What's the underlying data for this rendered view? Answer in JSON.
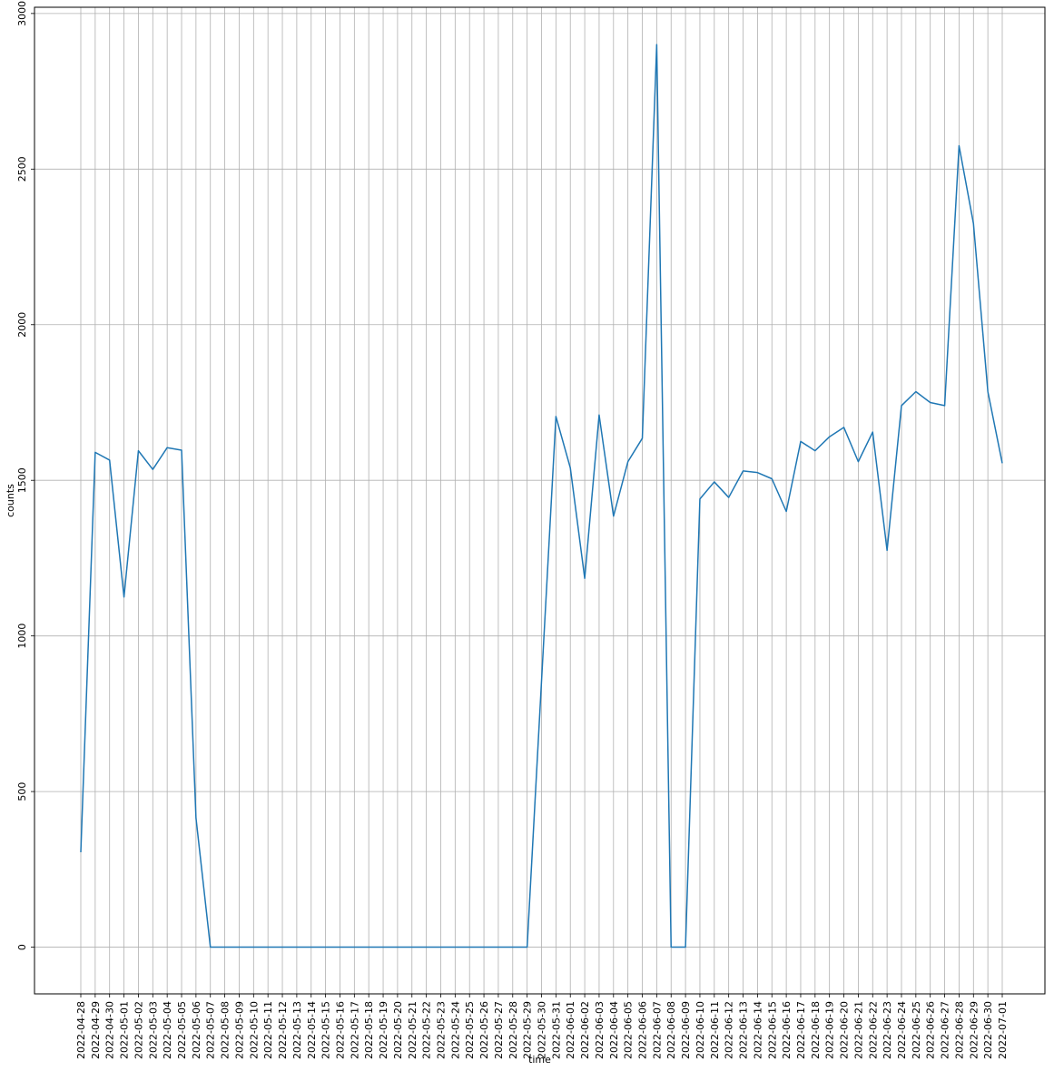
{
  "chart_data": {
    "type": "line",
    "xlabel": "time",
    "ylabel": "counts",
    "grid": true,
    "ylim": [
      -150,
      3020
    ],
    "yticks": [
      0,
      500,
      1000,
      1500,
      2000,
      2500,
      3000
    ],
    "series_color": "#1f77b4",
    "x": [
      "2022-04-28",
      "2022-04-29",
      "2022-04-30",
      "2022-05-01",
      "2022-05-02",
      "2022-05-03",
      "2022-05-04",
      "2022-05-05",
      "2022-05-06",
      "2022-05-07",
      "2022-05-08",
      "2022-05-09",
      "2022-05-10",
      "2022-05-11",
      "2022-05-12",
      "2022-05-13",
      "2022-05-14",
      "2022-05-15",
      "2022-05-16",
      "2022-05-17",
      "2022-05-18",
      "2022-05-19",
      "2022-05-20",
      "2022-05-21",
      "2022-05-22",
      "2022-05-23",
      "2022-05-24",
      "2022-05-25",
      "2022-05-26",
      "2022-05-27",
      "2022-05-28",
      "2022-05-29",
      "2022-05-30",
      "2022-05-31",
      "2022-06-01",
      "2022-06-02",
      "2022-06-03",
      "2022-06-04",
      "2022-06-05",
      "2022-06-06",
      "2022-06-07",
      "2022-06-08",
      "2022-06-09",
      "2022-06-10",
      "2022-06-11",
      "2022-06-12",
      "2022-06-13",
      "2022-06-14",
      "2022-06-15",
      "2022-06-16",
      "2022-06-17",
      "2022-06-18",
      "2022-06-19",
      "2022-06-20",
      "2022-06-21",
      "2022-06-22",
      "2022-06-23",
      "2022-06-24",
      "2022-06-25",
      "2022-06-26",
      "2022-06-27",
      "2022-06-28",
      "2022-06-29",
      "2022-06-30",
      "2022-07-01"
    ],
    "values": [
      305,
      1590,
      1565,
      1125,
      1595,
      1535,
      1605,
      1597,
      415,
      0,
      0,
      0,
      0,
      0,
      0,
      0,
      0,
      0,
      0,
      0,
      0,
      0,
      0,
      0,
      0,
      0,
      0,
      0,
      0,
      0,
      0,
      0,
      855,
      1705,
      1540,
      1185,
      1710,
      1385,
      1560,
      1635,
      2900,
      0,
      0,
      1440,
      1495,
      1445,
      1530,
      1525,
      1505,
      1400,
      1625,
      1595,
      1640,
      1670,
      1560,
      1655,
      1275,
      1740,
      1785,
      1750,
      1740,
      2575,
      2325,
      1785,
      1555
    ]
  }
}
